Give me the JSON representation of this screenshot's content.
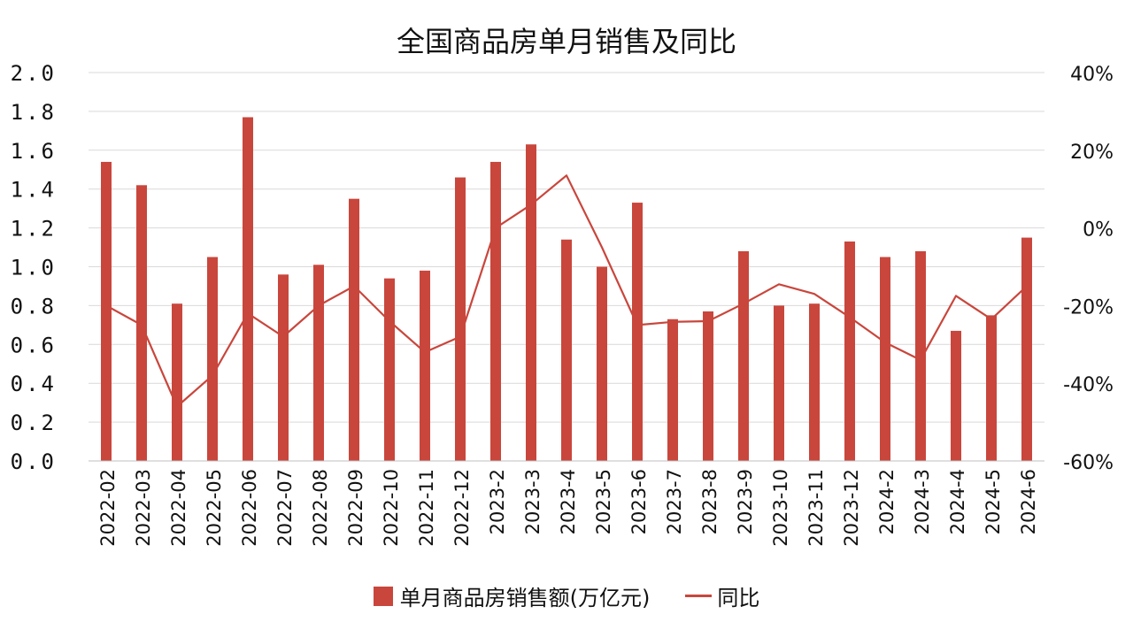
{
  "chart_data": {
    "type": "bar+line",
    "title": "全国商品房单月销售及同比",
    "categories": [
      "2022-02",
      "2022-03",
      "2022-04",
      "2022-05",
      "2022-06",
      "2022-07",
      "2022-08",
      "2022-09",
      "2022-10",
      "2022-11",
      "2022-12",
      "2023-2",
      "2023-3",
      "2023-4",
      "2023-5",
      "2023-6",
      "2023-7",
      "2023-8",
      "2023-9",
      "2023-10",
      "2023-11",
      "2023-12",
      "2024-2",
      "2024-3",
      "2024-4",
      "2024-5",
      "2024-6"
    ],
    "series": [
      {
        "name": "单月商品房销售额(万亿元)",
        "type": "bar",
        "axis": "left",
        "color": "#C9463C",
        "values": [
          1.54,
          1.42,
          0.81,
          1.05,
          1.77,
          0.96,
          1.01,
          1.35,
          0.94,
          0.98,
          1.46,
          1.54,
          1.63,
          1.14,
          1.0,
          1.33,
          0.73,
          0.77,
          1.08,
          0.8,
          0.81,
          1.13,
          1.05,
          1.08,
          0.67,
          0.75,
          1.15
        ]
      },
      {
        "name": "同比",
        "type": "line",
        "axis": "right",
        "color": "#C9463C",
        "values": [
          -20,
          -25,
          -46,
          -38,
          -22,
          -28,
          -20,
          -15,
          -24,
          -32,
          -28,
          0,
          6,
          13.5,
          -5,
          -25,
          -24.2,
          -24,
          -19.5,
          -14.5,
          -17,
          -23,
          -29.5,
          -34,
          -17.5,
          -23.5,
          -15
        ]
      }
    ],
    "yAxisLeft": {
      "range": [
        0,
        2.0
      ],
      "ticks": [
        "0.0",
        "0.2",
        "0.4",
        "0.6",
        "0.8",
        "1.0",
        "1.2",
        "1.4",
        "1.6",
        "1.8",
        "2.0"
      ]
    },
    "yAxisRight": {
      "range": [
        -60,
        40
      ],
      "ticks": [
        "-60%",
        "-40%",
        "-20%",
        "0%",
        "20%",
        "40%"
      ]
    },
    "grid": true,
    "legend": "bottom-center"
  }
}
